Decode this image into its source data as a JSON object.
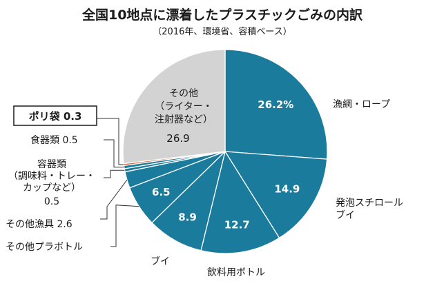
{
  "chart_data": {
    "type": "pie",
    "title": "全国10地点に漂着したプラスチックごみの内訳",
    "subtitle": "（2016年、環境省、容積ベース）",
    "unit": "%",
    "slices": [
      {
        "name": "漁網・ロープ",
        "label_lines": [
          "漁網・ロープ"
        ],
        "value": 26.2,
        "value_label": "26.2%",
        "color": "#1b7b9c"
      },
      {
        "name": "発泡スチロールブイ",
        "label_lines": [
          "発泡スチロール",
          "ブイ"
        ],
        "value": 14.9,
        "value_label": "14.9",
        "color": "#1b7b9c"
      },
      {
        "name": "飲料用ボトル",
        "label_lines": [
          "飲料用ボトル"
        ],
        "value": 12.7,
        "value_label": "12.7",
        "color": "#1b7b9c"
      },
      {
        "name": "ブイ",
        "label_lines": [
          "ブイ"
        ],
        "value": 8.9,
        "value_label": "8.9",
        "color": "#1b7b9c"
      },
      {
        "name": "その他プラボトル",
        "label_lines": [
          "その他プラボトル"
        ],
        "value": 6.5,
        "value_label": "6.5",
        "color": "#1b7b9c"
      },
      {
        "name": "その他漁具",
        "label_lines": [
          "その他漁具"
        ],
        "value": 2.6,
        "value_label": "2.6",
        "color": "#1b7b9c"
      },
      {
        "name": "容器類（調味料・トレー・カップなど）",
        "label_lines": [
          "容器類",
          "（調味料・トレー・",
          "カップなど）"
        ],
        "value": 0.5,
        "value_label": "0.5",
        "color": "#1b7b9c"
      },
      {
        "name": "食器類",
        "label_lines": [
          "食器類"
        ],
        "value": 0.5,
        "value_label": "0.5",
        "color": "#1b7b9c"
      },
      {
        "name": "ポリ袋",
        "label_lines": [
          "ポリ袋"
        ],
        "value": 0.3,
        "value_label": "0.3",
        "color": "#e0622a",
        "highlight": true
      },
      {
        "name": "その他（ライター・注射器など）",
        "label_lines": [
          "その他",
          "（ライター・",
          "注射器など）"
        ],
        "value": 26.9,
        "value_label": "26.9",
        "color": "#d3d3d3"
      }
    ]
  }
}
